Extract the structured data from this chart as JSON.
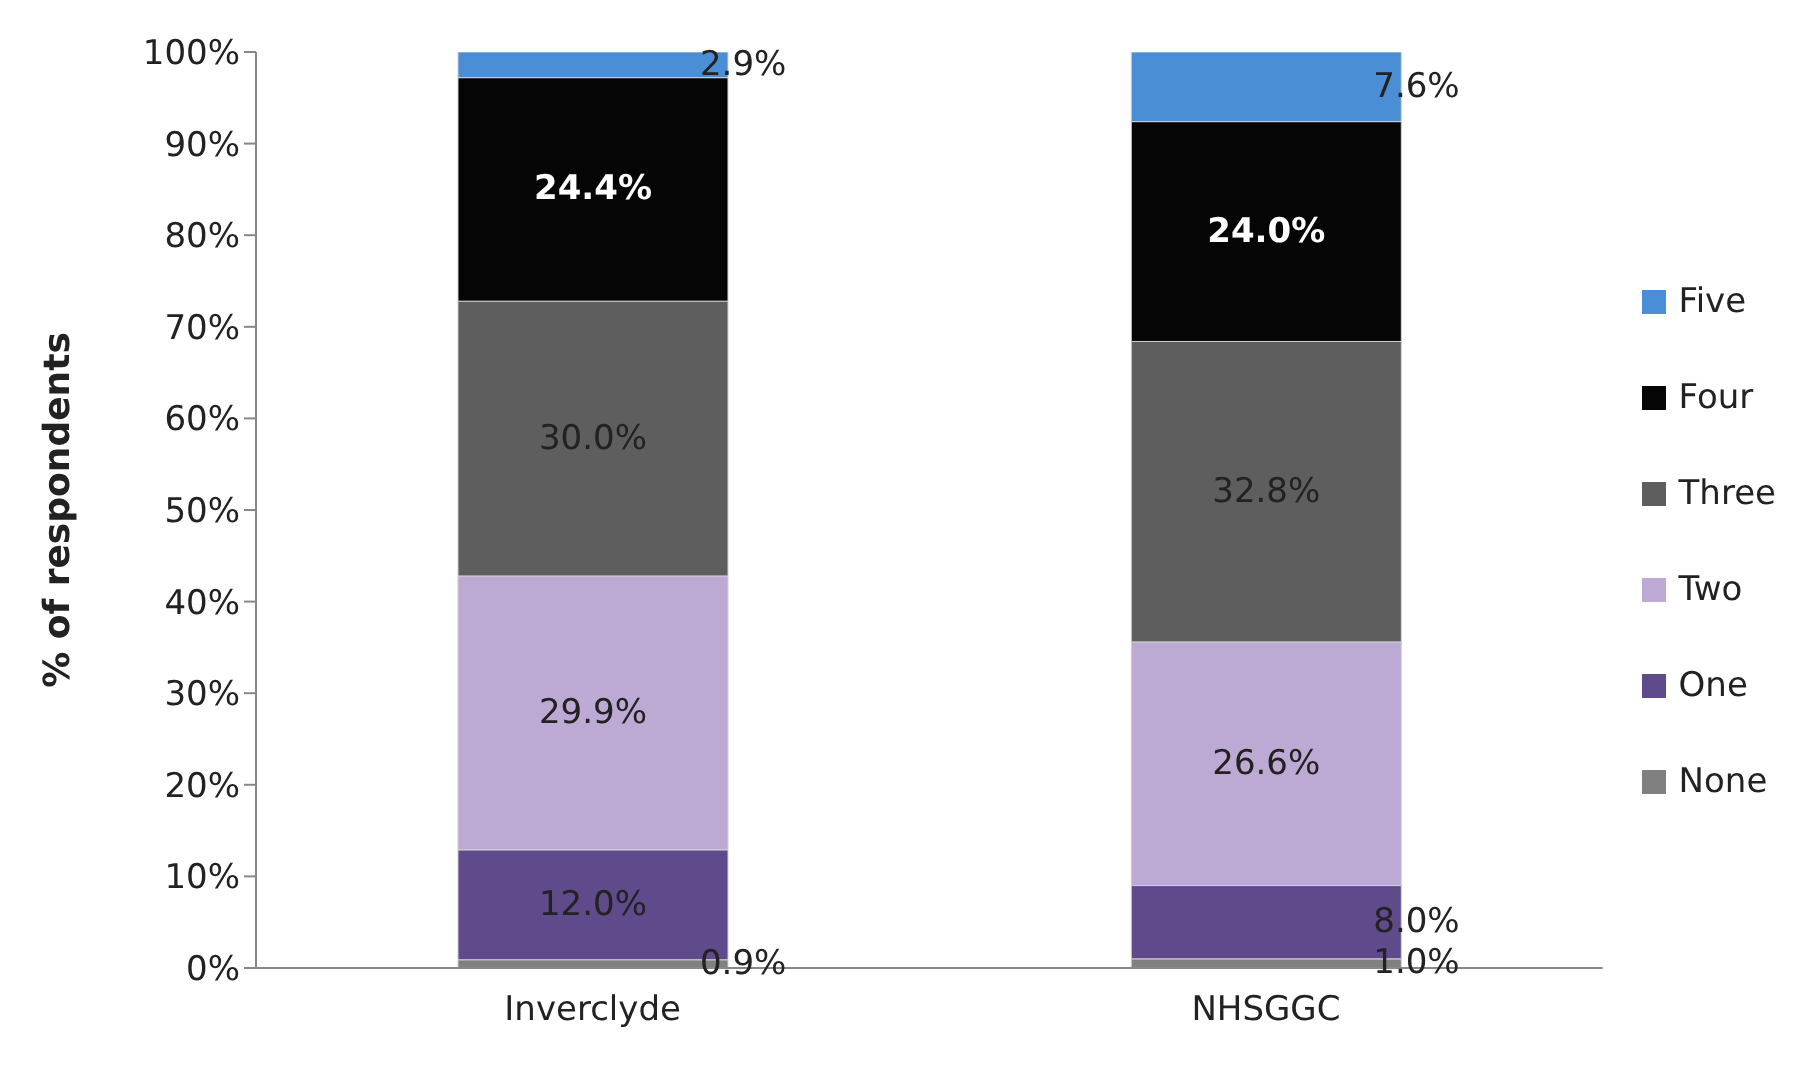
{
  "chart_data": {
    "type": "bar",
    "stacked": true,
    "ylabel": "% of respondents",
    "categories": [
      "Inverclyde",
      "NHSGGC"
    ],
    "ylim": [
      0,
      100
    ],
    "yticks": [
      {
        "value": 0,
        "label": "0%"
      },
      {
        "value": 10,
        "label": "10%"
      },
      {
        "value": 20,
        "label": "20%"
      },
      {
        "value": 30,
        "label": "30%"
      },
      {
        "value": 40,
        "label": "40%"
      },
      {
        "value": 50,
        "label": "50%"
      },
      {
        "value": 60,
        "label": "60%"
      },
      {
        "value": 70,
        "label": "70%"
      },
      {
        "value": 80,
        "label": "80%"
      },
      {
        "value": 90,
        "label": "90%"
      },
      {
        "value": 100,
        "label": "100%"
      }
    ],
    "grid": false,
    "legend": "right",
    "series": [
      {
        "name": "None",
        "color": "#808080",
        "values": [
          0.9,
          1.0
        ],
        "value_labels": [
          "0.9%",
          "1.0%"
        ]
      },
      {
        "name": "One",
        "color": "#5f4b8b",
        "values": [
          12.0,
          8.0
        ],
        "value_labels": [
          "12.0%",
          "8.0%"
        ]
      },
      {
        "name": "Two",
        "color": "#bcaad4",
        "values": [
          29.9,
          26.6
        ],
        "value_labels": [
          "29.9%",
          "26.6%"
        ]
      },
      {
        "name": "Three",
        "color": "#5e5e5e",
        "values": [
          30.0,
          32.8
        ],
        "value_labels": [
          "30.0%",
          "32.8%"
        ]
      },
      {
        "name": "Four",
        "color": "#050505",
        "values": [
          24.4,
          24.0
        ],
        "value_labels": [
          "24.4%",
          "24.0%"
        ]
      },
      {
        "name": "Five",
        "color": "#4a8fd6",
        "values": [
          2.9,
          7.6
        ],
        "value_labels": [
          "2.9%",
          "7.6%"
        ]
      }
    ]
  }
}
